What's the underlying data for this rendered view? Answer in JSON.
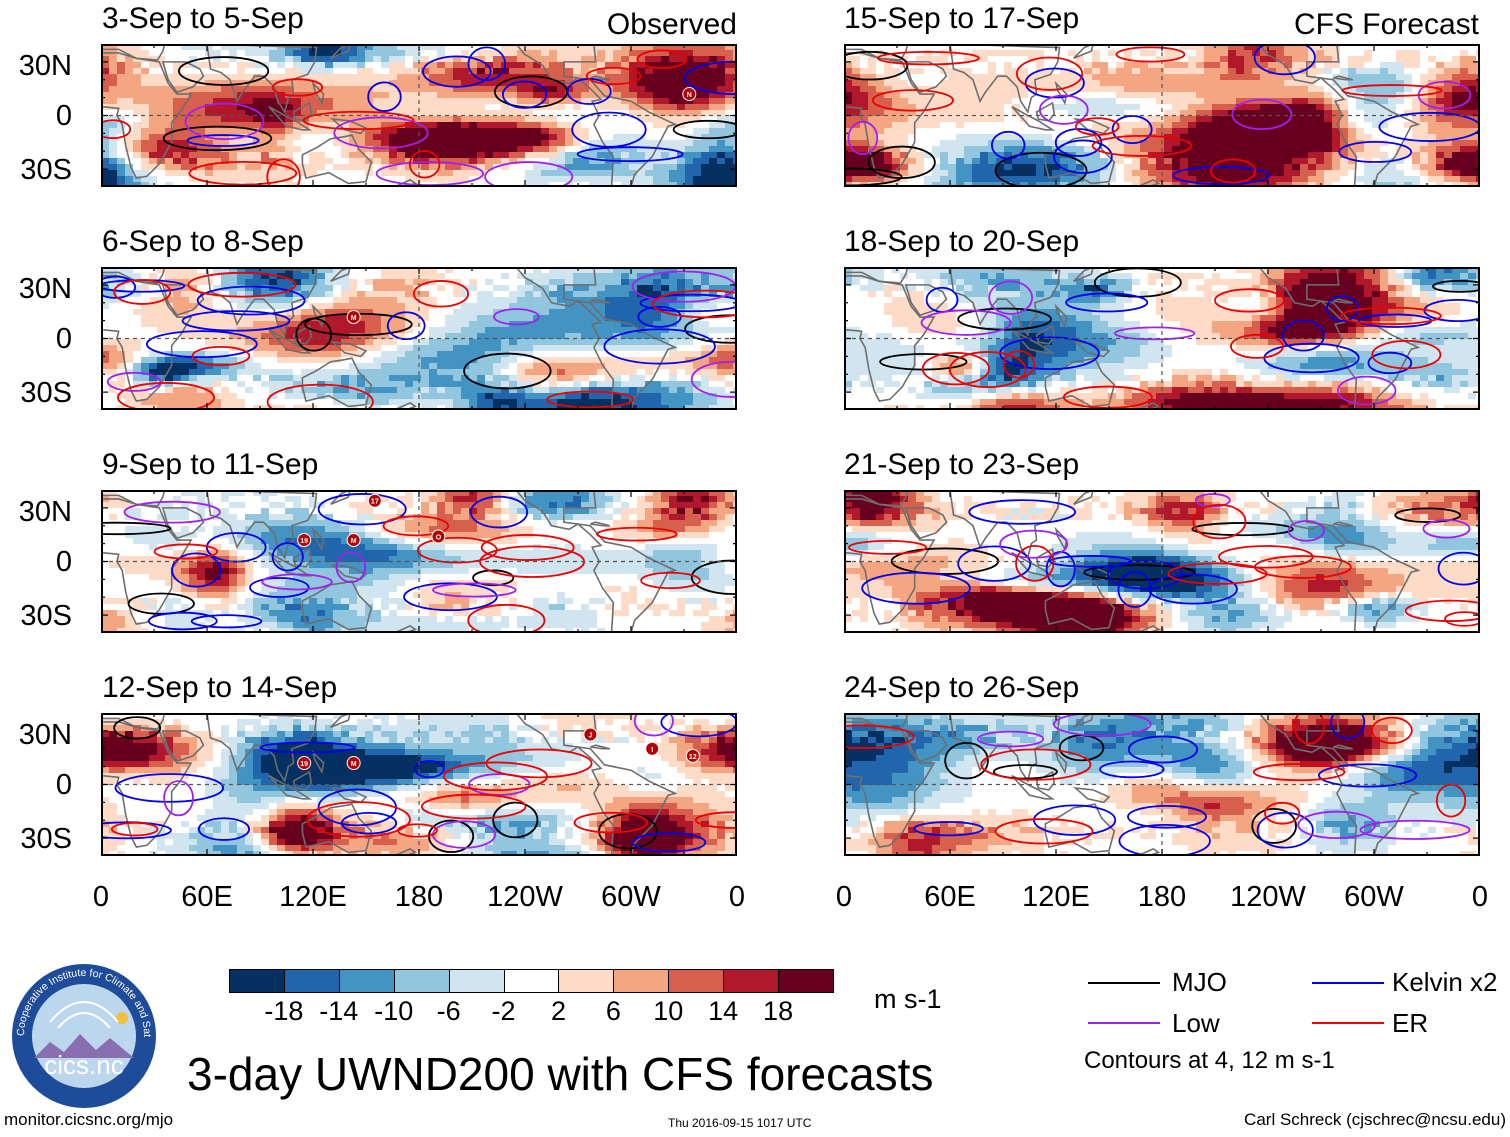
{
  "panels": [
    {
      "title": "3-Sep to 5-Sep",
      "tag": "Observed",
      "seed": 1,
      "storms": [
        {
          "label": "N",
          "lon": -27,
          "lat": 12
        }
      ]
    },
    {
      "title": "6-Sep to 8-Sep",
      "tag": "",
      "seed": 2,
      "storms": [
        {
          "label": "M",
          "lon": 143,
          "lat": 12
        }
      ]
    },
    {
      "title": "9-Sep to 11-Sep",
      "tag": "",
      "seed": 3,
      "storms": [
        {
          "label": "17",
          "lon": 155,
          "lat": 34
        },
        {
          "label": "19",
          "lon": 115,
          "lat": 12
        },
        {
          "label": "M",
          "lon": 143,
          "lat": 12
        },
        {
          "label": "O",
          "lon": -169,
          "lat": 14
        }
      ]
    },
    {
      "title": "12-Sep to 14-Sep",
      "tag": "",
      "seed": 4,
      "storms": [
        {
          "label": "19",
          "lon": 115,
          "lat": 12
        },
        {
          "label": "M",
          "lon": 143,
          "lat": 12
        },
        {
          "label": "J",
          "lon": -83,
          "lat": 28
        },
        {
          "label": "I",
          "lon": -48,
          "lat": 20
        },
        {
          "label": "12",
          "lon": -25,
          "lat": 16
        }
      ]
    },
    {
      "title": "15-Sep to 17-Sep",
      "tag": "CFS Forecast",
      "seed": 5,
      "storms": []
    },
    {
      "title": "18-Sep to 20-Sep",
      "tag": "",
      "seed": 6,
      "storms": []
    },
    {
      "title": "21-Sep to 23-Sep",
      "tag": "",
      "seed": 7,
      "storms": []
    },
    {
      "title": "24-Sep to 26-Sep",
      "tag": "",
      "seed": 8,
      "storms": []
    }
  ],
  "lat_labels": [
    "30N",
    "0",
    "30S"
  ],
  "lon_labels": [
    "0",
    "60E",
    "120E",
    "180",
    "120W",
    "60W",
    "0"
  ],
  "colorbar": {
    "colors": [
      "#053061",
      "#2166ac",
      "#4393c3",
      "#92c5de",
      "#d1e5f0",
      "#ffffff",
      "#fddbc7",
      "#f4a582",
      "#d6604d",
      "#b2182b",
      "#67001f"
    ],
    "ticks": [
      "-18",
      "-14",
      "-10",
      "-6",
      "-2",
      "2",
      "6",
      "10",
      "14",
      "18"
    ],
    "units": "m s-1"
  },
  "legend": {
    "items": [
      {
        "label": "MJO",
        "color": "#000000"
      },
      {
        "label": "Kelvin x2",
        "color": "#0000ee"
      },
      {
        "label": "Low",
        "color": "#a020f0"
      },
      {
        "label": "ER",
        "color": "#ee0000"
      }
    ],
    "note": "Contours at 4, 12 m s-1"
  },
  "logo": {
    "ring_text": "Cooperative Institute for Climate and Satellites",
    "name": "cics.nc"
  },
  "title": "3-day UWND200 with CFS forecasts",
  "footer": {
    "url": "monitor.cicsnc.org/mjo",
    "timestamp": "Thu 2016-09-15 1017 UTC",
    "author": "Carl Schreck (cjschrec@ncsu.edu)"
  }
}
